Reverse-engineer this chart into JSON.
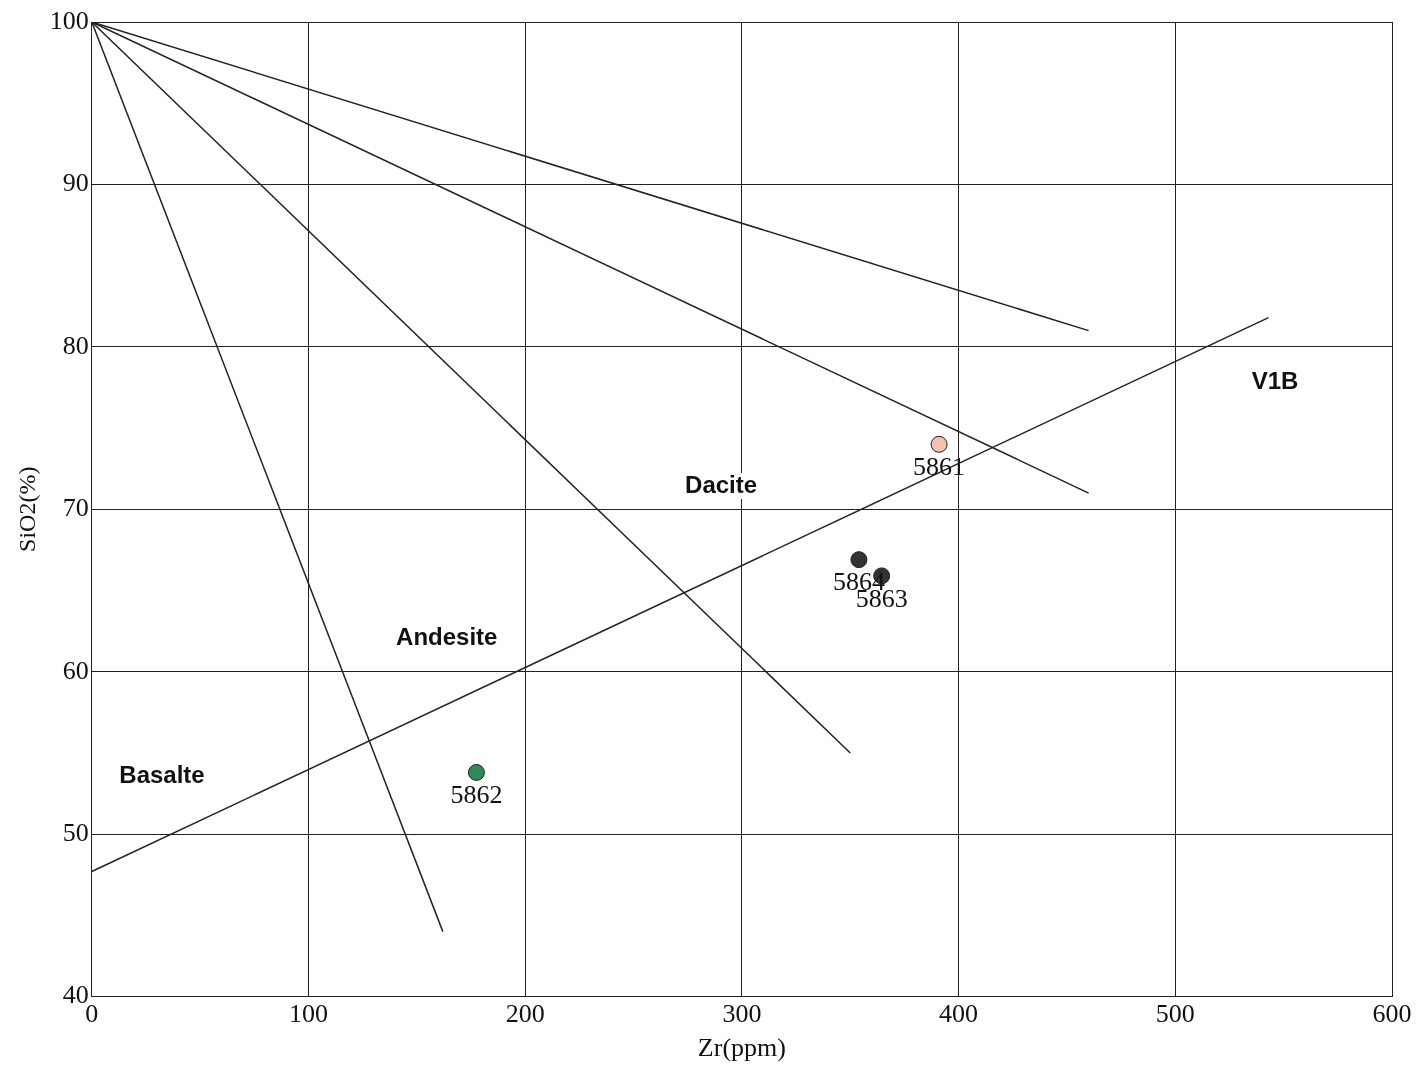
{
  "chart_data": {
    "type": "scatter",
    "xlabel": "Zr(ppm)",
    "ylabel": "SiO2(%)",
    "xlim": [
      0,
      600
    ],
    "xticks": [
      0,
      100,
      200,
      300,
      400,
      500,
      600
    ],
    "ylim": [
      40,
      100
    ],
    "yticks": [
      40,
      50,
      60,
      70,
      80,
      90,
      100
    ],
    "grid": true,
    "legend": false,
    "series": [
      {
        "type": "line",
        "color": "#222222",
        "x": [
          0,
          460
        ],
        "values": [
          100,
          81
        ]
      },
      {
        "type": "line",
        "color": "#222222",
        "x": [
          0,
          460
        ],
        "values": [
          100,
          71
        ]
      },
      {
        "type": "line",
        "color": "#222222",
        "x": [
          0,
          350
        ],
        "values": [
          100,
          55
        ]
      },
      {
        "type": "line",
        "color": "#222222",
        "x": [
          0,
          162
        ],
        "values": [
          100,
          44
        ]
      },
      {
        "type": "line",
        "color": "#222222",
        "x": [
          0,
          543
        ],
        "values": [
          47.7,
          81.8
        ]
      },
      {
        "type": "scatter",
        "marker": "circle",
        "name": "5861",
        "color": "#f4c0b0",
        "x": [
          391
        ],
        "values": [
          74
        ]
      },
      {
        "type": "scatter",
        "marker": "circle",
        "name": "5862",
        "color": "#2e8b57",
        "x": [
          177.5
        ],
        "values": [
          53.8
        ]
      },
      {
        "type": "scatter",
        "marker": "circle",
        "name": "5864",
        "color": "#333333",
        "x": [
          354
        ],
        "values": [
          66.9
        ]
      },
      {
        "type": "scatter",
        "marker": "circle",
        "name": "5863",
        "color": "#333333",
        "x": [
          364.5
        ],
        "values": [
          65.9
        ]
      }
    ],
    "annotations": [
      "Basalte",
      "Andesite",
      "Dacite",
      "V1B"
    ]
  }
}
